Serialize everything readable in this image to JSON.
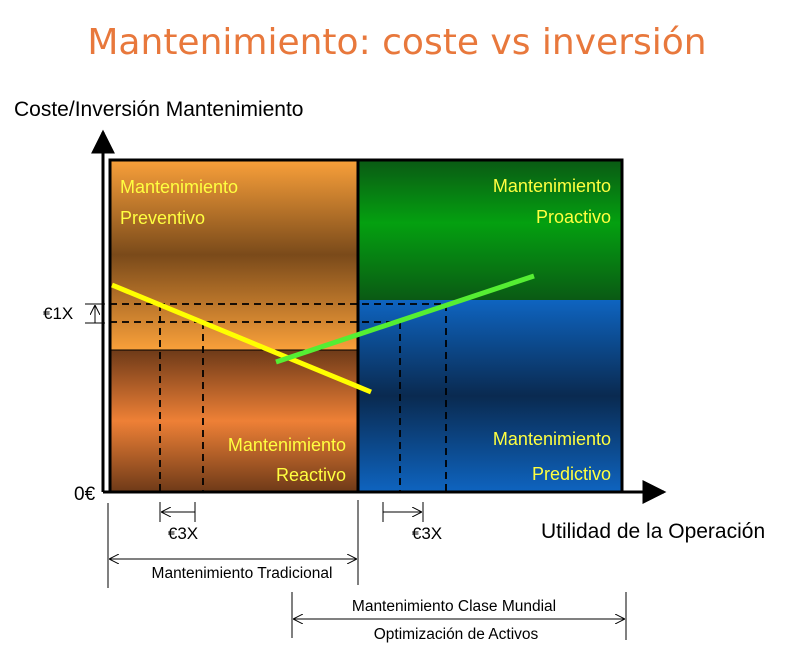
{
  "title": "Mantenimiento: coste vs inversión",
  "y_axis_label": "Coste/Inversión Mantenimiento",
  "x_axis_label": "Utilidad de la Operación",
  "origin_label": "0€",
  "delta_y_label": "€1X",
  "delta_x_labels": [
    "€3X",
    "€3X"
  ],
  "quadrants": {
    "preventivo": {
      "line1": "Mantenimiento",
      "line2": "Preventivo"
    },
    "reactivo": {
      "line1": "Mantenimiento",
      "line2": "Reactivo"
    },
    "proactivo": {
      "line1": "Mantenimiento",
      "line2": "Proactivo"
    },
    "predictivo": {
      "line1": "Mantenimiento",
      "line2": "Predictivo"
    }
  },
  "ranges": {
    "tradicional": "Mantenimiento Tradicional",
    "clase_mundial": "Mantenimiento Clase Mundial",
    "optimizacion": "Optimización de Activos"
  },
  "colors": {
    "title": "#E8783C",
    "quadrant_text": "#FFFF40",
    "traditional_line": "#FFFF00",
    "world_class_line": "#55EE33"
  }
}
